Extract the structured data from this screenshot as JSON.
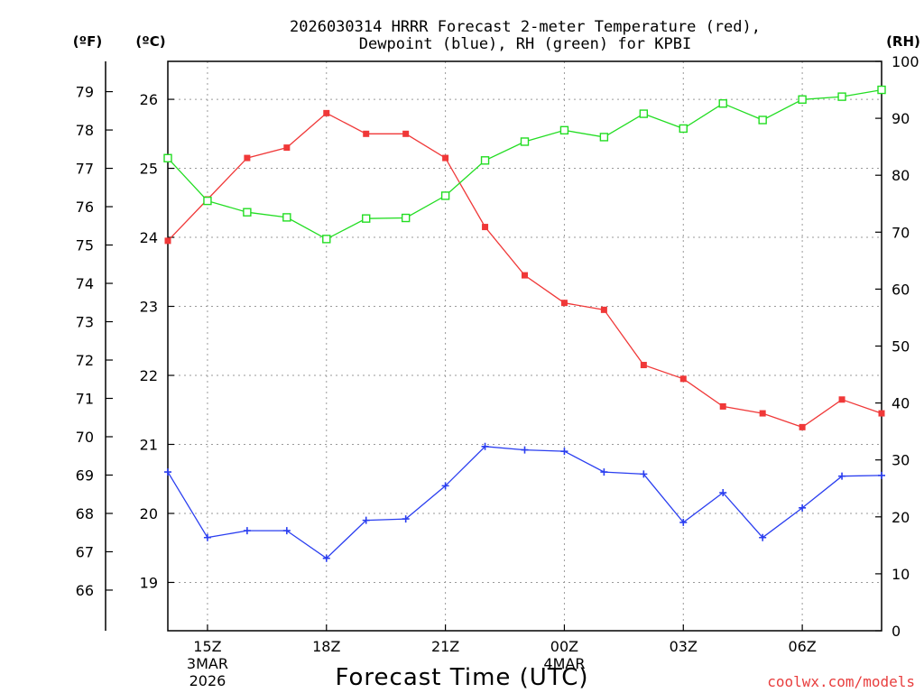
{
  "chart_data": {
    "type": "line",
    "title_line1": "2026030314 HRRR Forecast 2-meter Temperature (red),",
    "title_line2": "Dewpoint (blue), RH (green) for KPBI",
    "units": {
      "fahrenheit": "(ºF)",
      "celsius": "(ºC)",
      "rh": "(RH)"
    },
    "xlabel": "Forecast Time (UTC)",
    "credit": "coolwx.com/models",
    "x_hours": [
      14,
      15,
      16,
      17,
      18,
      19,
      20,
      21,
      22,
      23,
      24,
      25,
      26,
      27,
      28,
      29,
      30,
      31,
      32
    ],
    "xlim": [
      14,
      32
    ],
    "x_ticks": [
      {
        "hour": 15,
        "label": "15Z",
        "sub1": "3MAR",
        "sub2": "2026"
      },
      {
        "hour": 18,
        "label": "18Z"
      },
      {
        "hour": 21,
        "label": "21Z"
      },
      {
        "hour": 24,
        "label": "00Z",
        "sub1": "4MAR"
      },
      {
        "hour": 27,
        "label": "03Z"
      },
      {
        "hour": 30,
        "label": "06Z"
      }
    ],
    "celsius_axis": {
      "lim": [
        18.3,
        26.55
      ],
      "ticks": [
        "19",
        "20",
        "21",
        "22",
        "23",
        "24",
        "25",
        "26"
      ]
    },
    "fahrenheit_axis": {
      "ticks": [
        "66",
        "67",
        "68",
        "69",
        "70",
        "71",
        "72",
        "73",
        "74",
        "75",
        "76",
        "77",
        "78",
        "79"
      ]
    },
    "rh_axis": {
      "lim": [
        0,
        100
      ],
      "ticks": [
        "0",
        "10",
        "20",
        "30",
        "40",
        "50",
        "60",
        "70",
        "80",
        "90",
        "100"
      ]
    },
    "series": [
      {
        "name": "Temperature",
        "units": "C",
        "color": "#f03838",
        "marker": "filled-square",
        "values": [
          23.95,
          24.55,
          25.15,
          25.3,
          25.8,
          25.5,
          25.5,
          25.15,
          24.15,
          23.45,
          23.05,
          22.95,
          22.15,
          21.95,
          21.55,
          21.45,
          21.25,
          21.65,
          21.45
        ]
      },
      {
        "name": "Dewpoint",
        "units": "C",
        "color": "#2a3ef0",
        "marker": "plus",
        "values": [
          20.6,
          19.65,
          19.75,
          19.75,
          19.35,
          19.9,
          19.92,
          20.4,
          20.97,
          20.92,
          20.9,
          20.6,
          20.57,
          19.87,
          20.3,
          19.65,
          20.08,
          20.54,
          20.55
        ]
      },
      {
        "name": "RH",
        "units": "%",
        "color": "#22dd22",
        "marker": "open-square",
        "values": [
          83,
          75.5,
          73.5,
          72.6,
          68.8,
          72.4,
          72.5,
          76.4,
          82.6,
          85.9,
          87.9,
          86.7,
          90.8,
          88.2,
          92.6,
          89.7,
          93.3,
          93.8,
          95
        ]
      }
    ]
  }
}
